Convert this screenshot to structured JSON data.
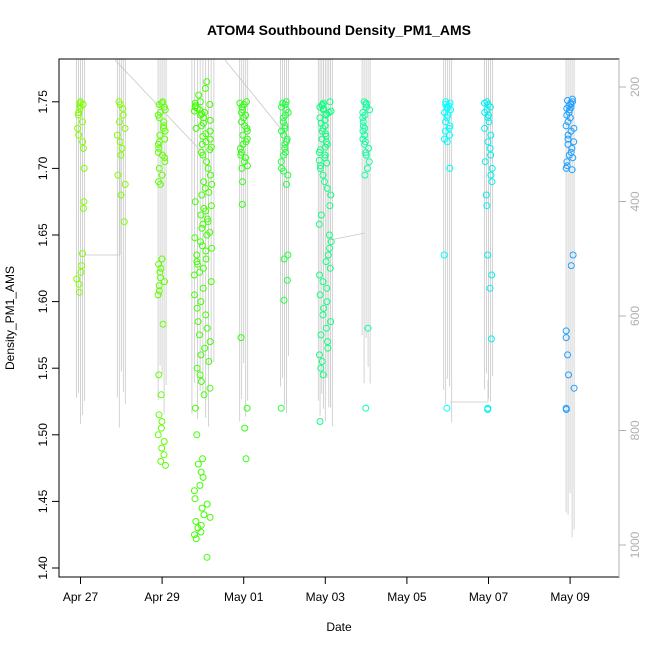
{
  "chart_data": {
    "type": "scatter",
    "title": "ATOM4 Southbound Density_PM1_AMS",
    "xlabel": "Date",
    "ylabel": "Density_PM1_AMS",
    "x_ticks": [
      "Apr 27",
      "Apr 29",
      "May 01",
      "May 03",
      "May 05",
      "May 07",
      "May 09"
    ],
    "y_ticks": [
      "1.40",
      "1.45",
      "1.50",
      "1.55",
      "1.60",
      "1.65",
      "1.70",
      "1.75"
    ],
    "right_ticks": [
      "200",
      "400",
      "600",
      "800",
      "1000"
    ],
    "xlim": [
      "2016-04-26",
      "2016-05-10"
    ],
    "ylim": [
      1.4,
      1.75
    ],
    "right_axis": {
      "range": [
        200,
        1000
      ],
      "inverted": true,
      "color": "#b0b0b0"
    },
    "grid": false,
    "legend": "none",
    "marker": "open-circle",
    "groups": [
      {
        "date": "2016-04-27",
        "color": "#80ff00",
        "values": [
          1.75,
          1.749,
          1.748,
          1.747,
          1.745,
          1.742,
          1.74,
          1.735,
          1.73,
          1.725,
          1.72,
          1.715,
          1.7,
          1.675,
          1.67,
          1.636,
          1.627,
          1.622,
          1.617,
          1.613,
          1.607
        ]
      },
      {
        "date": "2016-04-28",
        "color": "#80ff00",
        "values": [
          1.75,
          1.748,
          1.745,
          1.74,
          1.735,
          1.73,
          1.725,
          1.72,
          1.715,
          1.71,
          1.695,
          1.688,
          1.68,
          1.66
        ]
      },
      {
        "date": "2016-04-29",
        "color": "#60ff00",
        "values": [
          1.75,
          1.749,
          1.748,
          1.746,
          1.744,
          1.742,
          1.74,
          1.738,
          1.735,
          1.732,
          1.73,
          1.728,
          1.725,
          1.722,
          1.72,
          1.718,
          1.715,
          1.712,
          1.71,
          1.708,
          1.705,
          1.7,
          1.695,
          1.69,
          1.688,
          1.632,
          1.628,
          1.625,
          1.622,
          1.618,
          1.615,
          1.612,
          1.608,
          1.605,
          1.583,
          1.545,
          1.53,
          1.515,
          1.51,
          1.505,
          1.5,
          1.495,
          1.49,
          1.485,
          1.48,
          1.477
        ]
      },
      {
        "date": "2016-04-30",
        "color": "#40ff00",
        "values": [
          1.765,
          1.76,
          1.755,
          1.75,
          1.749,
          1.748,
          1.747,
          1.746,
          1.745,
          1.744,
          1.743,
          1.742,
          1.741,
          1.74,
          1.738,
          1.736,
          1.734,
          1.732,
          1.73,
          1.728,
          1.726,
          1.724,
          1.722,
          1.72,
          1.718,
          1.716,
          1.714,
          1.712,
          1.71,
          1.705,
          1.7,
          1.695,
          1.69,
          1.688,
          1.685,
          1.682,
          1.68,
          1.675,
          1.672,
          1.67,
          1.668,
          1.665,
          1.662,
          1.66,
          1.658,
          1.655,
          1.652,
          1.65,
          1.648,
          1.645,
          1.642,
          1.64,
          1.638,
          1.635,
          1.632,
          1.63,
          1.628,
          1.625,
          1.622,
          1.62,
          1.615,
          1.61,
          1.605,
          1.6,
          1.595,
          1.59,
          1.585,
          1.58,
          1.575,
          1.57,
          1.565,
          1.56,
          1.555,
          1.55,
          1.545,
          1.54,
          1.535,
          1.53,
          1.52,
          1.5,
          1.482,
          1.478,
          1.472,
          1.468,
          1.462,
          1.458,
          1.452,
          1.448,
          1.445,
          1.44,
          1.438,
          1.435,
          1.432,
          1.43,
          1.427,
          1.425,
          1.422,
          1.408
        ]
      },
      {
        "date": "2016-05-01",
        "color": "#30ff10",
        "values": [
          1.75,
          1.749,
          1.748,
          1.746,
          1.744,
          1.742,
          1.74,
          1.738,
          1.735,
          1.732,
          1.73,
          1.728,
          1.725,
          1.722,
          1.72,
          1.718,
          1.715,
          1.712,
          1.71,
          1.708,
          1.705,
          1.702,
          1.7,
          1.69,
          1.673,
          1.573,
          1.52,
          1.505,
          1.482
        ]
      },
      {
        "date": "2016-05-02",
        "color": "#20ff40",
        "values": [
          1.75,
          1.749,
          1.748,
          1.746,
          1.744,
          1.742,
          1.74,
          1.738,
          1.735,
          1.732,
          1.73,
          1.728,
          1.725,
          1.722,
          1.72,
          1.718,
          1.715,
          1.712,
          1.71,
          1.705,
          1.7,
          1.698,
          1.695,
          1.688,
          1.635,
          1.632,
          1.616,
          1.601,
          1.52
        ]
      },
      {
        "date": "2016-05-03",
        "color": "#10ff80",
        "values": [
          1.75,
          1.749,
          1.748,
          1.747,
          1.746,
          1.745,
          1.744,
          1.743,
          1.742,
          1.741,
          1.74,
          1.738,
          1.736,
          1.734,
          1.732,
          1.73,
          1.728,
          1.726,
          1.724,
          1.722,
          1.72,
          1.718,
          1.716,
          1.714,
          1.712,
          1.71,
          1.708,
          1.706,
          1.704,
          1.702,
          1.7,
          1.695,
          1.69,
          1.685,
          1.68,
          1.672,
          1.665,
          1.658,
          1.65,
          1.645,
          1.64,
          1.635,
          1.63,
          1.625,
          1.62,
          1.615,
          1.61,
          1.605,
          1.6,
          1.595,
          1.59,
          1.585,
          1.58,
          1.575,
          1.57,
          1.565,
          1.56,
          1.555,
          1.55,
          1.545,
          1.51
        ]
      },
      {
        "date": "2016-05-04",
        "color": "#10ffa0",
        "values": [
          1.75,
          1.749,
          1.748,
          1.746,
          1.744,
          1.742,
          1.74,
          1.738,
          1.735,
          1.732,
          1.73,
          1.728,
          1.725,
          1.722,
          1.72,
          1.718,
          1.715,
          1.712,
          1.71,
          1.705,
          1.7,
          1.695,
          1.58,
          1.52
        ]
      },
      {
        "date": "2016-05-06",
        "color": "#00ffff",
        "values": [
          1.75,
          1.749,
          1.748,
          1.747,
          1.746,
          1.745,
          1.744,
          1.742,
          1.74,
          1.738,
          1.735,
          1.732,
          1.73,
          1.728,
          1.725,
          1.722,
          1.72,
          1.7,
          1.635,
          1.52
        ]
      },
      {
        "date": "2016-05-07",
        "color": "#00f0f0",
        "values": [
          1.75,
          1.749,
          1.748,
          1.746,
          1.744,
          1.742,
          1.74,
          1.738,
          1.735,
          1.73,
          1.725,
          1.72,
          1.715,
          1.71,
          1.705,
          1.7,
          1.695,
          1.69,
          1.68,
          1.672,
          1.635,
          1.62,
          1.61,
          1.572,
          1.52,
          1.519
        ]
      },
      {
        "date": "2016-05-09",
        "color": "#20a0ff",
        "values": [
          1.752,
          1.751,
          1.75,
          1.749,
          1.748,
          1.747,
          1.746,
          1.745,
          1.744,
          1.742,
          1.74,
          1.738,
          1.735,
          1.732,
          1.73,
          1.728,
          1.725,
          1.722,
          1.72,
          1.718,
          1.715,
          1.712,
          1.71,
          1.708,
          1.705,
          1.702,
          1.7,
          1.699,
          1.635,
          1.627,
          1.578,
          1.573,
          1.56,
          1.545,
          1.535,
          1.52,
          1.519
        ]
      }
    ]
  }
}
